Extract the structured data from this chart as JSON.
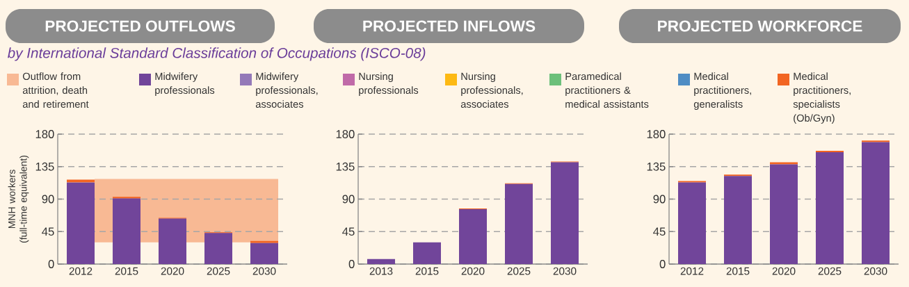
{
  "chart_data": [
    {
      "type": "bar",
      "title": "PROJECTED OUTFLOWS",
      "subtitle": "by International Standard Classification of Occupations (ISCO-08)",
      "ylabel": "MNH workers (full-time equivalent)",
      "categories": [
        "2012",
        "2015",
        "2020",
        "2025",
        "2030"
      ],
      "stacked": true,
      "ylim": [
        0,
        180
      ],
      "yticks": [
        0,
        45,
        90,
        135,
        180
      ],
      "grid": "y",
      "legend": "top",
      "bands": [
        {
          "axis": "y",
          "from": 30,
          "to": 118,
          "label": "Outflow from attrition, death and retirement",
          "color": "#f8b994"
        }
      ],
      "series": [
        {
          "name": "Midwifery professionals",
          "color": "#71459a",
          "values": [
            113,
            91,
            63,
            43,
            29
          ]
        },
        {
          "name": "Midwifery professionals, associates",
          "color": "#9479b8",
          "values": [
            null,
            null,
            null,
            null,
            null
          ]
        },
        {
          "name": "Nursing professionals",
          "color": "#c06aa8",
          "values": [
            null,
            null,
            null,
            null,
            null
          ]
        },
        {
          "name": "Nursing professionals, associates",
          "color": "#fdb913",
          "values": [
            null,
            null,
            null,
            null,
            null
          ]
        },
        {
          "name": "Paramedical practitioners & medical assistants",
          "color": "#6cc07a",
          "values": [
            null,
            null,
            null,
            null,
            null
          ]
        },
        {
          "name": "Medical practitioners, generalists",
          "color": "#4f8dc4",
          "values": [
            null,
            null,
            null,
            null,
            null
          ]
        },
        {
          "name": "Medical practitioners, specialists (Ob/Gyn)",
          "color": "#f26522",
          "values": [
            4,
            2,
            1,
            1,
            3
          ]
        }
      ]
    },
    {
      "type": "bar",
      "title": "PROJECTED INFLOWS",
      "categories": [
        "2013",
        "2015",
        "2020",
        "2025",
        "2030"
      ],
      "stacked": true,
      "ylim": [
        0,
        180
      ],
      "yticks": [
        0,
        45,
        90,
        135,
        180
      ],
      "grid": "y",
      "series": [
        {
          "color": "#71459a",
          "values": [
            7,
            30,
            76,
            111,
            141
          ]
        },
        {
          "color": "#f26522",
          "values": [
            null,
            null,
            1,
            1,
            1
          ]
        }
      ]
    },
    {
      "type": "bar",
      "title": "PROJECTED WORKFORCE",
      "categories": [
        "2012",
        "2015",
        "2020",
        "2025",
        "2030"
      ],
      "stacked": true,
      "ylim": [
        0,
        180
      ],
      "yticks": [
        0,
        45,
        90,
        135,
        180
      ],
      "grid": "y",
      "series": [
        {
          "color": "#71459a",
          "values": [
            113,
            122,
            138,
            155,
            169
          ]
        },
        {
          "color": "#f26522",
          "values": [
            2,
            2,
            3,
            2,
            2
          ]
        }
      ]
    }
  ]
}
